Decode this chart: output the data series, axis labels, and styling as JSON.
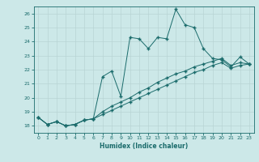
{
  "xlabel": "Humidex (Indice chaleur)",
  "ylabel": "",
  "background_color": "#cce8e8",
  "grid_color": "#b8d4d4",
  "line_color": "#1a6b6b",
  "xlim": [
    -0.5,
    23.5
  ],
  "ylim": [
    17.5,
    26.5
  ],
  "xticks": [
    0,
    1,
    2,
    3,
    4,
    5,
    6,
    7,
    8,
    9,
    10,
    11,
    12,
    13,
    14,
    15,
    16,
    17,
    18,
    19,
    20,
    21,
    22,
    23
  ],
  "yticks": [
    18,
    19,
    20,
    21,
    22,
    23,
    24,
    25,
    26
  ],
  "series1": {
    "x": [
      0,
      1,
      2,
      3,
      4,
      5,
      6,
      7,
      8,
      9,
      10,
      11,
      12,
      13,
      14,
      15,
      16,
      17,
      18,
      19,
      20,
      21,
      22,
      23
    ],
    "y": [
      18.6,
      18.1,
      18.3,
      18.0,
      18.1,
      18.4,
      18.5,
      21.5,
      21.9,
      20.1,
      24.3,
      24.2,
      23.5,
      24.3,
      24.2,
      26.3,
      25.2,
      25.0,
      23.5,
      22.8,
      22.7,
      22.2,
      22.9,
      22.4
    ]
  },
  "series2": {
    "x": [
      0,
      1,
      2,
      3,
      4,
      5,
      6,
      7,
      8,
      9,
      10,
      11,
      12,
      13,
      14,
      15,
      16,
      17,
      18,
      19,
      20,
      21,
      22,
      23
    ],
    "y": [
      18.6,
      18.1,
      18.3,
      18.0,
      18.1,
      18.4,
      18.5,
      19.0,
      19.4,
      19.7,
      20.0,
      20.4,
      20.7,
      21.1,
      21.4,
      21.7,
      21.9,
      22.2,
      22.4,
      22.6,
      22.8,
      22.3,
      22.5,
      22.4
    ]
  },
  "series3": {
    "x": [
      0,
      1,
      2,
      3,
      4,
      5,
      6,
      7,
      8,
      9,
      10,
      11,
      12,
      13,
      14,
      15,
      16,
      17,
      18,
      19,
      20,
      21,
      22,
      23
    ],
    "y": [
      18.6,
      18.1,
      18.3,
      18.0,
      18.1,
      18.4,
      18.5,
      18.8,
      19.1,
      19.4,
      19.7,
      20.0,
      20.3,
      20.6,
      20.9,
      21.2,
      21.5,
      21.8,
      22.0,
      22.3,
      22.5,
      22.1,
      22.3,
      22.4
    ]
  }
}
